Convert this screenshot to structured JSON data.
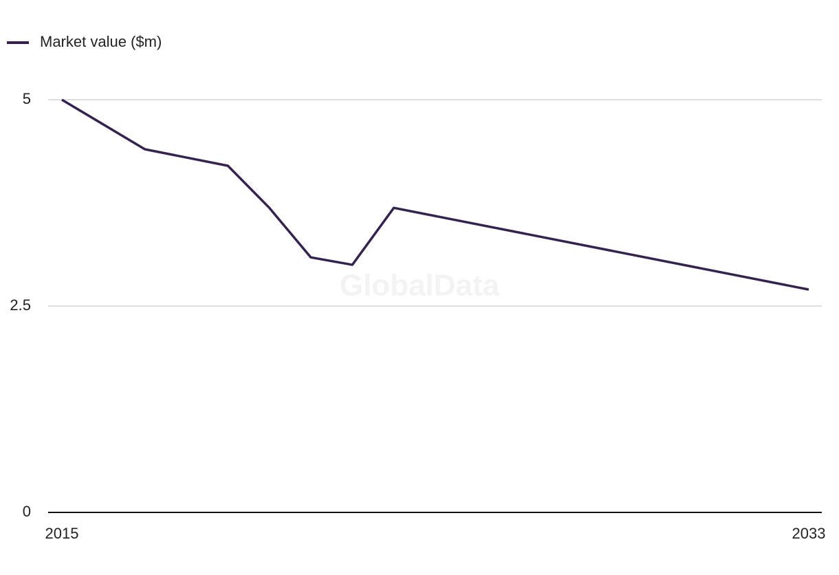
{
  "chart_data": {
    "type": "line",
    "watermark": "GlobalData",
    "x": [
      2015,
      2017,
      2019,
      2020,
      2021,
      2022,
      2023,
      2033
    ],
    "series": [
      {
        "name": "Market value ($m)",
        "color": "#35234f",
        "values": [
          5,
          4.4,
          4.2,
          3.69,
          3.09,
          3.0,
          3.69,
          2.7
        ]
      }
    ],
    "xlim": [
      2015,
      2033
    ],
    "xticks": [
      2015,
      2033
    ],
    "ylim": [
      0,
      5
    ],
    "yticks": [
      0,
      2.5,
      5
    ],
    "grid": true
  }
}
